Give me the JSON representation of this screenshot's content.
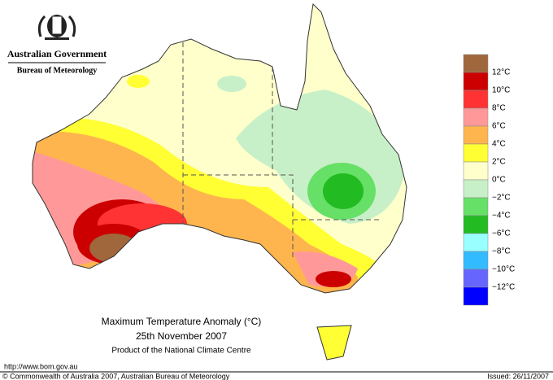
{
  "header": {
    "government": "Australian Government",
    "bureau": "Bureau of Meteorology"
  },
  "title": {
    "line1": "Maximum Temperature Anomaly (°C)",
    "line2": "25th November 2007",
    "line3": "Product of the National Climate Centre"
  },
  "legend": {
    "colors": [
      "#a0663c",
      "#cc0000",
      "#ff3333",
      "#ff9999",
      "#ffb54d",
      "#ffff33",
      "#ffffcc",
      "#c8f0c8",
      "#66e066",
      "#22bb22",
      "#99ffff",
      "#33bbff",
      "#6666ff",
      "#0000ff"
    ],
    "labels": [
      "12°C",
      "10°C",
      "8°C",
      "6°C",
      "4°C",
      "2°C",
      "0°C",
      "−2°C",
      "−4°C",
      "−6°C",
      "−8°C",
      "−10°C",
      "−12°C"
    ]
  },
  "footer": {
    "url": "http://www.bom.gov.au",
    "copyright": "© Commonwealth of Australia 2007, Australian Bureau of Meteorology",
    "issued": "Issued: 26/11/2007"
  }
}
